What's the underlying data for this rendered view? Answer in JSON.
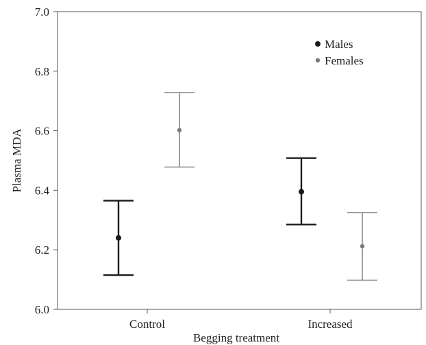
{
  "chart_data": {
    "type": "scatter",
    "title": "",
    "xlabel": "Begging treatment",
    "ylabel": "Plasma MDA",
    "categories": [
      "Control",
      "Increased"
    ],
    "ylim": [
      6.0,
      7.0
    ],
    "yticks": [
      "6.0",
      "6.2",
      "6.4",
      "6.6",
      "6.8",
      "7.0"
    ],
    "grid": false,
    "legend_position": "top-right",
    "error_bars": true,
    "series": [
      {
        "name": "Males",
        "color": "#1a1a1a",
        "points": [
          {
            "category": "Control",
            "mean": 6.24,
            "lower": 6.115,
            "upper": 6.365
          },
          {
            "category": "Increased",
            "mean": 6.395,
            "lower": 6.285,
            "upper": 6.508
          }
        ]
      },
      {
        "name": "Females",
        "color": "#7a7a7a",
        "points": [
          {
            "category": "Control",
            "mean": 6.602,
            "lower": 6.478,
            "upper": 6.728
          },
          {
            "category": "Increased",
            "mean": 6.212,
            "lower": 6.098,
            "upper": 6.325
          }
        ]
      }
    ]
  }
}
